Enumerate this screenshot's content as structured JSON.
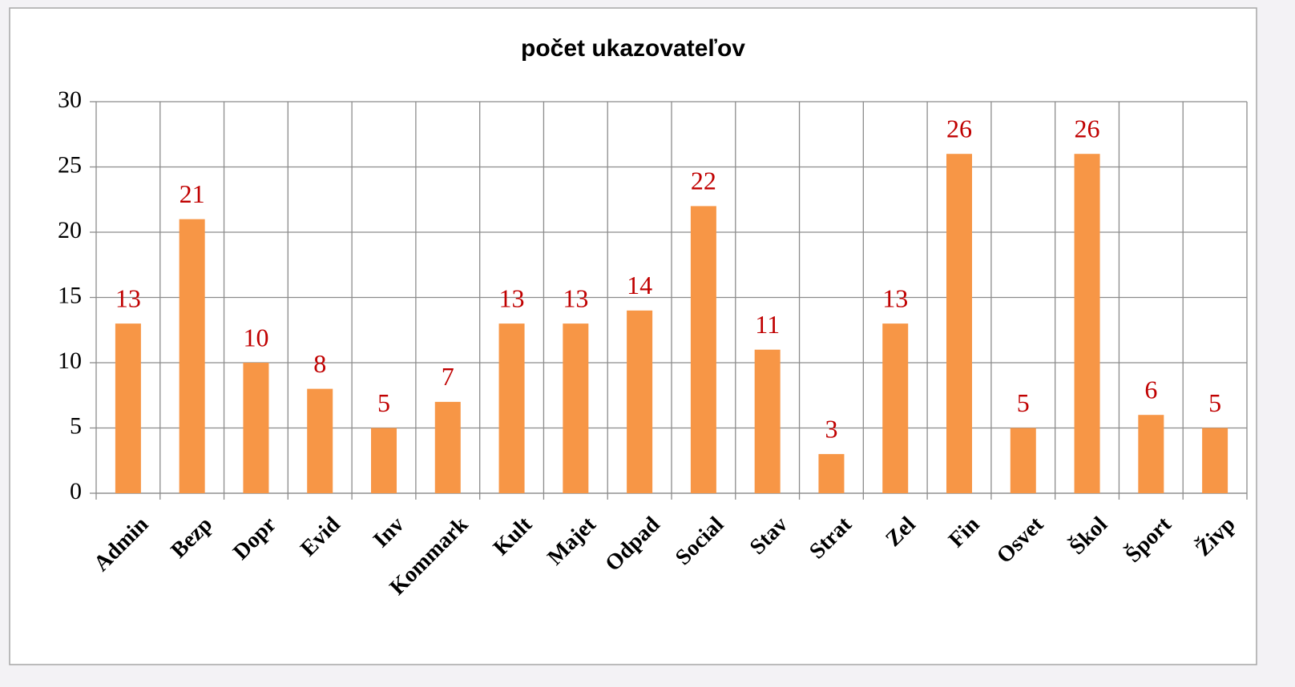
{
  "chart_data": {
    "type": "bar",
    "title": "počet ukazovateľov",
    "categories": [
      "Admin",
      "Bezp",
      "Dopr",
      "Evid",
      "Inv",
      "Kommark",
      "Kult",
      "Majet",
      "Odpad",
      "Social",
      "Stav",
      "Strat",
      "Zel",
      "Fin",
      "Osvet",
      "Škol",
      "Šport",
      "Živp"
    ],
    "values": [
      13,
      21,
      10,
      8,
      5,
      7,
      13,
      13,
      14,
      22,
      11,
      3,
      13,
      26,
      5,
      26,
      6,
      5
    ],
    "color": "#f79646",
    "label_color": "#c00000",
    "ylim": [
      0,
      30
    ],
    "yticks": [
      0,
      5,
      10,
      15,
      20,
      25,
      30
    ],
    "grid": true
  }
}
